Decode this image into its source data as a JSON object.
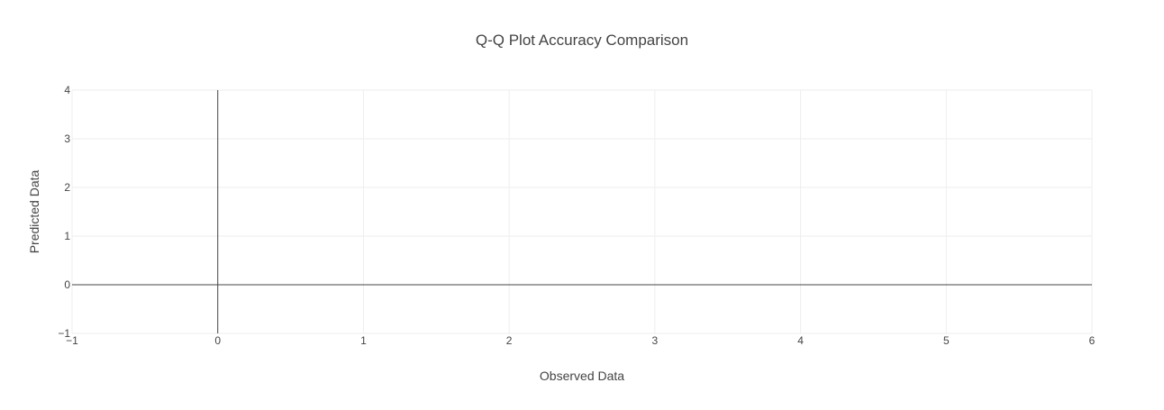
{
  "chart_data": {
    "type": "scatter",
    "title": "Q-Q Plot Accuracy Comparison",
    "xlabel": "Observed Data",
    "ylabel": "Predicted Data",
    "xlim": [
      -1,
      6
    ],
    "ylim": [
      -1,
      4
    ],
    "x_ticks": [
      -1,
      0,
      1,
      2,
      3,
      4,
      5,
      6
    ],
    "y_ticks": [
      -1,
      0,
      1,
      2,
      3,
      4
    ],
    "x_tick_labels": [
      "−1",
      "0",
      "1",
      "2",
      "3",
      "4",
      "5",
      "6"
    ],
    "y_tick_labels": [
      "−1",
      "0",
      "1",
      "2",
      "3",
      "4"
    ],
    "grid": true,
    "zero_lines": true,
    "series": [],
    "colors": {
      "grid": "#eeeeee",
      "zeroline": "#444444",
      "tick_text": "#444444",
      "title_text": "#444444",
      "axis_title_text": "#444444"
    }
  }
}
